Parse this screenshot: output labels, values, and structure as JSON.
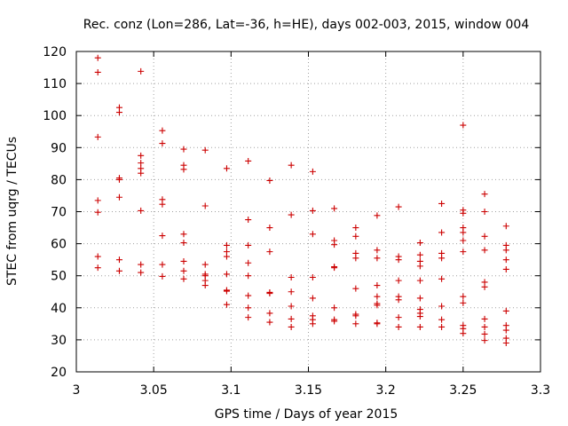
{
  "chart_data": {
    "type": "scatter",
    "title": "Rec. conz (Lon=286, Lat=-36, h=HE), days 002-003, 2015, window 004",
    "xlabel": "GPS time / Days of year 2015",
    "ylabel": "STEC from uqrg / TECUs",
    "xlim": [
      3,
      3.3
    ],
    "ylim": [
      20,
      120
    ],
    "xticks": [
      "3",
      "3.05",
      "3.1",
      "3.15",
      "3.2",
      "3.25",
      "3.3"
    ],
    "yticks": [
      "20",
      "30",
      "40",
      "50",
      "60",
      "70",
      "80",
      "90",
      "100",
      "110",
      "120"
    ],
    "grid": true,
    "marker": "plus",
    "color": "#cc0000",
    "series": [
      {
        "name": "STEC",
        "points": [
          [
            3.0139,
            118.0
          ],
          [
            3.0139,
            113.5
          ],
          [
            3.0139,
            93.3
          ],
          [
            3.0139,
            73.5
          ],
          [
            3.0139,
            69.8
          ],
          [
            3.0139,
            56.0
          ],
          [
            3.0139,
            52.5
          ],
          [
            3.0278,
            102.5
          ],
          [
            3.0278,
            101.0
          ],
          [
            3.0278,
            80.5
          ],
          [
            3.0278,
            80.0
          ],
          [
            3.0278,
            74.5
          ],
          [
            3.0278,
            55.0
          ],
          [
            3.0278,
            51.5
          ],
          [
            3.0417,
            113.8
          ],
          [
            3.0417,
            87.5
          ],
          [
            3.0417,
            85.2
          ],
          [
            3.0417,
            83.5
          ],
          [
            3.0417,
            82.0
          ],
          [
            3.0417,
            70.3
          ],
          [
            3.0417,
            53.5
          ],
          [
            3.0417,
            51.0
          ],
          [
            3.0556,
            95.3
          ],
          [
            3.0556,
            91.3
          ],
          [
            3.0556,
            73.8
          ],
          [
            3.0556,
            72.3
          ],
          [
            3.0556,
            62.5
          ],
          [
            3.0556,
            53.5
          ],
          [
            3.0556,
            49.8
          ],
          [
            3.0694,
            89.5
          ],
          [
            3.0694,
            84.5
          ],
          [
            3.0694,
            83.2
          ],
          [
            3.0694,
            63.0
          ],
          [
            3.0694,
            60.3
          ],
          [
            3.0694,
            54.5
          ],
          [
            3.0694,
            51.5
          ],
          [
            3.0694,
            49.0
          ],
          [
            3.0833,
            89.2
          ],
          [
            3.0833,
            71.8
          ],
          [
            3.0833,
            53.5
          ],
          [
            3.0833,
            50.5
          ],
          [
            3.0833,
            50.0
          ],
          [
            3.0833,
            48.5
          ],
          [
            3.0833,
            47.0
          ],
          [
            3.0972,
            83.5
          ],
          [
            3.0972,
            59.5
          ],
          [
            3.0972,
            57.5
          ],
          [
            3.0972,
            56.0
          ],
          [
            3.0972,
            50.5
          ],
          [
            3.0972,
            45.5
          ],
          [
            3.0972,
            45.2
          ],
          [
            3.0972,
            41.0
          ],
          [
            3.1111,
            85.8
          ],
          [
            3.1111,
            67.5
          ],
          [
            3.1111,
            59.5
          ],
          [
            3.1111,
            54.0
          ],
          [
            3.1111,
            50.0
          ],
          [
            3.1111,
            43.8
          ],
          [
            3.1111,
            40.0
          ],
          [
            3.1111,
            37.0
          ],
          [
            3.125,
            79.7
          ],
          [
            3.125,
            65.0
          ],
          [
            3.125,
            57.5
          ],
          [
            3.125,
            44.5
          ],
          [
            3.125,
            44.8
          ],
          [
            3.125,
            38.3
          ],
          [
            3.125,
            35.5
          ],
          [
            3.1389,
            84.5
          ],
          [
            3.1389,
            69.0
          ],
          [
            3.1389,
            49.5
          ],
          [
            3.1389,
            45.0
          ],
          [
            3.1389,
            40.5
          ],
          [
            3.1389,
            36.5
          ],
          [
            3.1389,
            34.0
          ],
          [
            3.1528,
            82.5
          ],
          [
            3.1528,
            70.3
          ],
          [
            3.1528,
            63.0
          ],
          [
            3.1528,
            49.5
          ],
          [
            3.1528,
            43.0
          ],
          [
            3.1528,
            37.5
          ],
          [
            3.1528,
            36.3
          ],
          [
            3.1528,
            35.0
          ],
          [
            3.1667,
            71.0
          ],
          [
            3.1667,
            61.0
          ],
          [
            3.1667,
            59.7
          ],
          [
            3.1667,
            52.8
          ],
          [
            3.1667,
            52.5
          ],
          [
            3.1667,
            40.0
          ],
          [
            3.1667,
            36.3
          ],
          [
            3.1667,
            35.8
          ],
          [
            3.1806,
            65.0
          ],
          [
            3.1806,
            62.3
          ],
          [
            3.1806,
            57.0
          ],
          [
            3.1806,
            55.5
          ],
          [
            3.1806,
            46.0
          ],
          [
            3.1806,
            38.0
          ],
          [
            3.1806,
            37.5
          ],
          [
            3.1806,
            35.0
          ],
          [
            3.1944,
            68.8
          ],
          [
            3.1944,
            58.0
          ],
          [
            3.1944,
            55.5
          ],
          [
            3.1944,
            47.0
          ],
          [
            3.1944,
            43.5
          ],
          [
            3.1944,
            41.3
          ],
          [
            3.1944,
            40.8
          ],
          [
            3.1944,
            35.3
          ],
          [
            3.1944,
            35.0
          ],
          [
            3.2083,
            71.5
          ],
          [
            3.2083,
            56.0
          ],
          [
            3.2083,
            55.0
          ],
          [
            3.2083,
            48.5
          ],
          [
            3.2083,
            43.5
          ],
          [
            3.2083,
            42.5
          ],
          [
            3.2083,
            37.0
          ],
          [
            3.2083,
            34.0
          ],
          [
            3.2222,
            60.3
          ],
          [
            3.2222,
            56.5
          ],
          [
            3.2222,
            54.5
          ],
          [
            3.2222,
            53.0
          ],
          [
            3.2222,
            48.5
          ],
          [
            3.2222,
            43.0
          ],
          [
            3.2222,
            39.5
          ],
          [
            3.2222,
            38.3
          ],
          [
            3.2222,
            37.3
          ],
          [
            3.2222,
            34.0
          ],
          [
            3.2361,
            72.5
          ],
          [
            3.2361,
            63.5
          ],
          [
            3.2361,
            57.0
          ],
          [
            3.2361,
            55.5
          ],
          [
            3.2361,
            49.0
          ],
          [
            3.2361,
            40.5
          ],
          [
            3.2361,
            36.3
          ],
          [
            3.2361,
            34.0
          ],
          [
            3.25,
            97.0
          ],
          [
            3.25,
            70.5
          ],
          [
            3.25,
            69.5
          ],
          [
            3.25,
            65.0
          ],
          [
            3.25,
            63.5
          ],
          [
            3.25,
            61.0
          ],
          [
            3.25,
            57.5
          ],
          [
            3.25,
            43.5
          ],
          [
            3.25,
            41.5
          ],
          [
            3.25,
            34.5
          ],
          [
            3.25,
            33.5
          ],
          [
            3.25,
            32.0
          ],
          [
            3.2639,
            75.5
          ],
          [
            3.2639,
            70.0
          ],
          [
            3.2639,
            62.3
          ],
          [
            3.2639,
            58.0
          ],
          [
            3.2639,
            48.0
          ],
          [
            3.2639,
            46.5
          ],
          [
            3.2639,
            36.5
          ],
          [
            3.2639,
            34.0
          ],
          [
            3.2639,
            31.8
          ],
          [
            3.2639,
            29.8
          ],
          [
            3.2778,
            65.5
          ],
          [
            3.2778,
            59.5
          ],
          [
            3.2778,
            58.0
          ],
          [
            3.2778,
            55.0
          ],
          [
            3.2778,
            52.0
          ],
          [
            3.2778,
            39.0
          ],
          [
            3.2778,
            34.5
          ],
          [
            3.2778,
            33.0
          ],
          [
            3.2778,
            30.5
          ],
          [
            3.2778,
            29.0
          ]
        ]
      }
    ]
  }
}
